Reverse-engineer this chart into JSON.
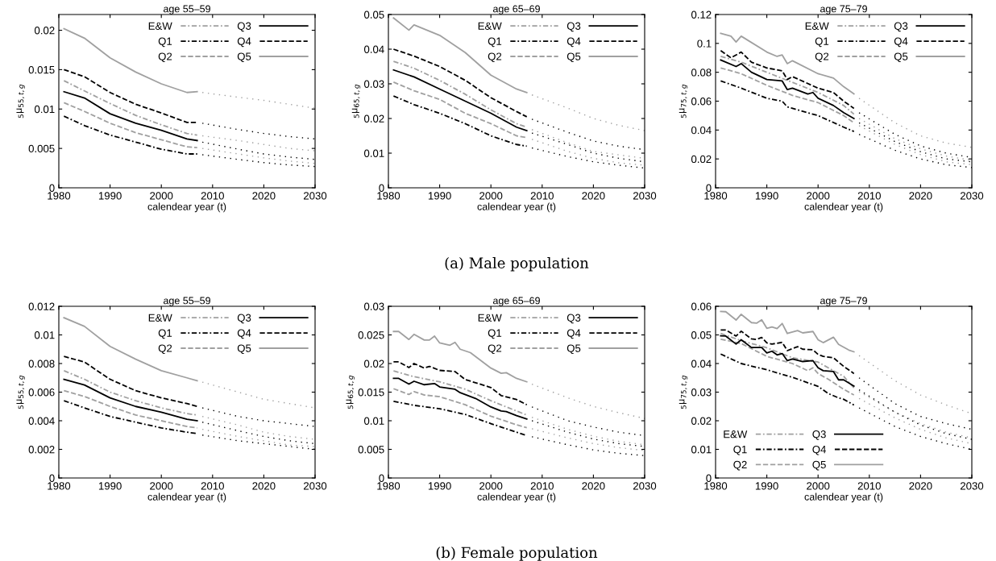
{
  "chart_data": [
    {
      "type": "line",
      "title": "age 55–59",
      "xlabel": "calendear year (t)",
      "ylabel": "$_{5}$μ$_{55,t,g}$",
      "xlim": [
        1980,
        2030
      ],
      "ylim": [
        0,
        0.022
      ],
      "xticks": [
        1980,
        1990,
        2000,
        2010,
        2020,
        2030
      ],
      "yticks": [
        0,
        0.005,
        0.01,
        0.015,
        0.02
      ],
      "legend": "top right",
      "series": [
        {
          "name": "E&W",
          "color": "#a0a0a0",
          "line_style": "dashdot",
          "x": [
            1981,
            1985,
            1990,
            1995,
            2000,
            2005,
            2007
          ],
          "values": [
            0.0136,
            0.0123,
            0.0107,
            0.0092,
            0.008,
            0.0069,
            0.0067
          ]
        },
        {
          "name": "Q1",
          "color": "#000000",
          "line_style": "dashdot",
          "x": [
            1981,
            1985,
            1990,
            1995,
            2000,
            2005,
            2007
          ],
          "values": [
            0.0091,
            0.0079,
            0.0067,
            0.0058,
            0.0049,
            0.0043,
            0.0043
          ]
        },
        {
          "name": "Q2",
          "color": "#a0a0a0",
          "line_style": "dashed",
          "x": [
            1981,
            1985,
            1990,
            1995,
            2000,
            2005,
            2007
          ],
          "values": [
            0.0108,
            0.0097,
            0.0082,
            0.007,
            0.0061,
            0.0052,
            0.0051
          ]
        },
        {
          "name": "Q3",
          "color": "#000000",
          "line_style": "solid",
          "x": [
            1981,
            1985,
            1990,
            1995,
            2000,
            2005,
            2007
          ],
          "values": [
            0.0122,
            0.0114,
            0.0094,
            0.0082,
            0.0073,
            0.0062,
            0.006
          ]
        },
        {
          "name": "Q4",
          "color": "#000000",
          "line_style": "dashed",
          "x": [
            1981,
            1985,
            1990,
            1995,
            2000,
            2005,
            2007
          ],
          "values": [
            0.015,
            0.0141,
            0.0121,
            0.0106,
            0.0095,
            0.0083,
            0.0083
          ]
        },
        {
          "name": "Q5",
          "color": "#a0a0a0",
          "line_style": "solid",
          "x": [
            1981,
            1985,
            1990,
            1995,
            2000,
            2005,
            2007
          ],
          "values": [
            0.0202,
            0.019,
            0.0165,
            0.0147,
            0.0132,
            0.0121,
            0.0122
          ]
        },
        {
          "color": "#a0a0a0",
          "line_style": "dotted",
          "x": [
            2008,
            2015,
            2020,
            2025,
            2030
          ],
          "values": [
            0.0066,
            0.006,
            0.0055,
            0.005,
            0.0047
          ]
        },
        {
          "color": "#000000",
          "line_style": "dotted",
          "x": [
            2008,
            2015,
            2020,
            2025,
            2030
          ],
          "values": [
            0.0042,
            0.0036,
            0.0032,
            0.0029,
            0.0027
          ]
        },
        {
          "color": "#a0a0a0",
          "line_style": "dotted",
          "x": [
            2008,
            2015,
            2020,
            2025,
            2030
          ],
          "values": [
            0.005,
            0.0043,
            0.0038,
            0.0034,
            0.0031
          ]
        },
        {
          "color": "#000000",
          "line_style": "dotted",
          "x": [
            2008,
            2015,
            2020,
            2025,
            2030
          ],
          "values": [
            0.0058,
            0.0049,
            0.0043,
            0.0039,
            0.0036
          ]
        },
        {
          "color": "#000000",
          "line_style": "dotted",
          "x": [
            2008,
            2015,
            2020,
            2025,
            2030
          ],
          "values": [
            0.0082,
            0.0074,
            0.0069,
            0.0065,
            0.0062
          ]
        },
        {
          "color": "#a0a0a0",
          "line_style": "dotted",
          "x": [
            2008,
            2015,
            2020,
            2025,
            2030
          ],
          "values": [
            0.0121,
            0.0115,
            0.0111,
            0.0106,
            0.0101
          ]
        }
      ]
    },
    {
      "type": "line",
      "title": "age 65–69",
      "xlabel": "calendear year (t)",
      "ylabel": "$_{5}$μ$_{65,t,g}$",
      "xlim": [
        1980,
        2030
      ],
      "ylim": [
        0,
        0.05
      ],
      "xticks": [
        1980,
        1990,
        2000,
        2010,
        2020,
        2030
      ],
      "yticks": [
        0,
        0.01,
        0.02,
        0.03,
        0.04,
        0.05
      ],
      "legend": "top right",
      "annotations": [
        "(a) Male population"
      ],
      "series": [
        {
          "name": "E&W",
          "color": "#a0a0a0",
          "line_style": "dashdot",
          "x": [
            1981,
            1985,
            1990,
            1995,
            2000,
            2005,
            2007
          ],
          "values": [
            0.0365,
            0.0345,
            0.031,
            0.027,
            0.0225,
            0.0185,
            0.0175
          ]
        },
        {
          "name": "Q1",
          "color": "#000000",
          "line_style": "dashdot",
          "x": [
            1981,
            1985,
            1990,
            1995,
            2000,
            2005,
            2007
          ],
          "values": [
            0.0265,
            0.024,
            0.0215,
            0.0185,
            0.015,
            0.0125,
            0.012
          ]
        },
        {
          "name": "Q2",
          "color": "#a0a0a0",
          "line_style": "dashed",
          "x": [
            1981,
            1985,
            1990,
            1995,
            2000,
            2005,
            2007
          ],
          "values": [
            0.0305,
            0.028,
            0.0255,
            0.0215,
            0.0185,
            0.015,
            0.0145
          ]
        },
        {
          "name": "Q3",
          "color": "#000000",
          "line_style": "solid",
          "x": [
            1981,
            1985,
            1990,
            1995,
            2000,
            2005,
            2007
          ],
          "values": [
            0.034,
            0.032,
            0.0285,
            0.025,
            0.0215,
            0.0175,
            0.0165
          ]
        },
        {
          "name": "Q4",
          "color": "#000000",
          "line_style": "dashed",
          "x": [
            1981,
            1985,
            1990,
            1995,
            2000,
            2005,
            2007
          ],
          "values": [
            0.04,
            0.038,
            0.035,
            0.031,
            0.026,
            0.022,
            0.0205
          ]
        },
        {
          "name": "Q5",
          "color": "#a0a0a0",
          "line_style": "solid",
          "x": [
            1981,
            1984,
            1985,
            1990,
            1995,
            2000,
            2005,
            2007
          ],
          "values": [
            0.049,
            0.0455,
            0.047,
            0.044,
            0.039,
            0.0325,
            0.0285,
            0.0275
          ]
        },
        {
          "color": "#a0a0a0",
          "line_style": "dotted",
          "x": [
            2008,
            2015,
            2020,
            2025,
            2030
          ],
          "values": [
            0.0168,
            0.013,
            0.0105,
            0.0095,
            0.0085
          ]
        },
        {
          "color": "#000000",
          "line_style": "dotted",
          "x": [
            2008,
            2015,
            2020,
            2025,
            2030
          ],
          "values": [
            0.0115,
            0.009,
            0.0075,
            0.0065,
            0.0057
          ]
        },
        {
          "color": "#a0a0a0",
          "line_style": "dotted",
          "x": [
            2008,
            2015,
            2020,
            2025,
            2030
          ],
          "values": [
            0.014,
            0.0105,
            0.0085,
            0.0072,
            0.0065
          ]
        },
        {
          "color": "#000000",
          "line_style": "dotted",
          "x": [
            2008,
            2015,
            2020,
            2025,
            2030
          ],
          "values": [
            0.0158,
            0.0125,
            0.01,
            0.0085,
            0.0075
          ]
        },
        {
          "color": "#000000",
          "line_style": "dotted",
          "x": [
            2008,
            2015,
            2020,
            2025,
            2030
          ],
          "values": [
            0.0198,
            0.016,
            0.0135,
            0.012,
            0.011
          ]
        },
        {
          "color": "#a0a0a0",
          "line_style": "dotted",
          "x": [
            2008,
            2015,
            2020,
            2025,
            2030
          ],
          "values": [
            0.0268,
            0.023,
            0.02,
            0.018,
            0.0165
          ]
        }
      ]
    },
    {
      "type": "line",
      "title": "age 75–79",
      "xlabel": "calendear year (t)",
      "ylabel": "$_{5}$μ$_{75,t,g}$",
      "xlim": [
        1980,
        2030
      ],
      "ylim": [
        0,
        0.12
      ],
      "xticks": [
        1980,
        1990,
        2000,
        2010,
        2020,
        2030
      ],
      "yticks": [
        0,
        0.02,
        0.04,
        0.06,
        0.08,
        0.1,
        0.12
      ],
      "legend": "top right",
      "series": [
        {
          "name": "E&W",
          "color": "#a0a0a0",
          "line_style": "dashdot",
          "x": [
            1981,
            1985,
            1990,
            1995,
            2000,
            2005,
            2007
          ],
          "values": [
            0.091,
            0.087,
            0.08,
            0.073,
            0.066,
            0.057,
            0.051
          ]
        },
        {
          "name": "Q1",
          "color": "#000000",
          "line_style": "dashdot",
          "x": [
            1981,
            1985,
            1990,
            1993,
            1994,
            1995,
            2000,
            2005,
            2007
          ],
          "values": [
            0.074,
            0.069,
            0.062,
            0.06,
            0.056,
            0.055,
            0.05,
            0.042,
            0.039
          ]
        },
        {
          "name": "Q2",
          "color": "#a0a0a0",
          "line_style": "dashed",
          "x": [
            1981,
            1985,
            1990,
            1995,
            2000,
            2005,
            2007
          ],
          "values": [
            0.083,
            0.079,
            0.071,
            0.064,
            0.059,
            0.05,
            0.045
          ]
        },
        {
          "name": "Q3",
          "color": "#000000",
          "line_style": "solid",
          "x": [
            1981,
            1984,
            1985,
            1987,
            1990,
            1993,
            1994,
            1995,
            1998,
            1999,
            2000,
            2003,
            2005,
            2007
          ],
          "values": [
            0.0885,
            0.084,
            0.086,
            0.08,
            0.075,
            0.074,
            0.068,
            0.069,
            0.065,
            0.066,
            0.062,
            0.057,
            0.052,
            0.048
          ]
        },
        {
          "name": "Q4",
          "color": "#000000",
          "line_style": "dashed",
          "x": [
            1981,
            1983,
            1985,
            1987,
            1990,
            1993,
            1994,
            1995,
            2000,
            2003,
            2005,
            2007
          ],
          "values": [
            0.095,
            0.09,
            0.094,
            0.087,
            0.083,
            0.081,
            0.075,
            0.077,
            0.069,
            0.066,
            0.06,
            0.055
          ]
        },
        {
          "name": "Q5",
          "color": "#a0a0a0",
          "line_style": "solid",
          "x": [
            1981,
            1983,
            1984,
            1985,
            1990,
            1992,
            1993,
            1994,
            1995,
            2000,
            2003,
            2005,
            2007
          ],
          "values": [
            0.107,
            0.105,
            0.101,
            0.105,
            0.094,
            0.091,
            0.092,
            0.086,
            0.088,
            0.079,
            0.076,
            0.07,
            0.065
          ]
        },
        {
          "color": "#a0a0a0",
          "line_style": "dotted",
          "x": [
            2008,
            2015,
            2020,
            2025,
            2030
          ],
          "values": [
            0.048,
            0.034,
            0.027,
            0.022,
            0.019
          ]
        },
        {
          "color": "#000000",
          "line_style": "dotted",
          "x": [
            2008,
            2015,
            2020,
            2025,
            2030
          ],
          "values": [
            0.037,
            0.026,
            0.02,
            0.016,
            0.014
          ]
        },
        {
          "color": "#a0a0a0",
          "line_style": "dotted",
          "x": [
            2008,
            2015,
            2020,
            2025,
            2030
          ],
          "values": [
            0.043,
            0.03,
            0.023,
            0.018,
            0.016
          ]
        },
        {
          "color": "#000000",
          "line_style": "dotted",
          "x": [
            2008,
            2015,
            2020,
            2025,
            2030
          ],
          "values": [
            0.045,
            0.032,
            0.025,
            0.02,
            0.018
          ]
        },
        {
          "color": "#000000",
          "line_style": "dotted",
          "x": [
            2008,
            2015,
            2020,
            2025,
            2030
          ],
          "values": [
            0.052,
            0.037,
            0.029,
            0.024,
            0.021
          ]
        },
        {
          "color": "#a0a0a0",
          "line_style": "dotted",
          "x": [
            2008,
            2015,
            2020,
            2025,
            2030
          ],
          "values": [
            0.062,
            0.045,
            0.036,
            0.031,
            0.028
          ]
        }
      ]
    },
    {
      "type": "line",
      "title": "age 55–59",
      "xlabel": "calendear year (t)",
      "ylabel": "$_{5}$μ$_{55,t,g}$",
      "xlim": [
        1980,
        2030
      ],
      "ylim": [
        0,
        0.012
      ],
      "xticks": [
        1980,
        1990,
        2000,
        2010,
        2020,
        2030
      ],
      "yticks": [
        0,
        0.002,
        0.004,
        0.006,
        0.008,
        0.01,
        0.012
      ],
      "legend": "top right",
      "series": [
        {
          "name": "E&W",
          "color": "#a0a0a0",
          "line_style": "dashdot",
          "x": [
            1981,
            1985,
            1990,
            1995,
            2000,
            2005,
            2007
          ],
          "values": [
            0.0075,
            0.0069,
            0.006,
            0.0054,
            0.0049,
            0.0045,
            0.0044
          ]
        },
        {
          "name": "Q1",
          "color": "#000000",
          "line_style": "dashdot",
          "x": [
            1981,
            1985,
            1990,
            1995,
            2000,
            2005,
            2007
          ],
          "values": [
            0.0054,
            0.0049,
            0.0043,
            0.0039,
            0.0035,
            0.0032,
            0.0031
          ]
        },
        {
          "name": "Q2",
          "color": "#a0a0a0",
          "line_style": "dashed",
          "x": [
            1981,
            1985,
            1990,
            1995,
            2000,
            2005,
            2007
          ],
          "values": [
            0.0061,
            0.0057,
            0.005,
            0.0044,
            0.004,
            0.0036,
            0.0035
          ]
        },
        {
          "name": "Q3",
          "color": "#000000",
          "line_style": "solid",
          "x": [
            1981,
            1985,
            1990,
            1995,
            2000,
            2005,
            2007
          ],
          "values": [
            0.0069,
            0.0065,
            0.0056,
            0.005,
            0.0046,
            0.0041,
            0.004
          ]
        },
        {
          "name": "Q4",
          "color": "#000000",
          "line_style": "dashed",
          "x": [
            1981,
            1985,
            1990,
            1995,
            2000,
            2005,
            2007
          ],
          "values": [
            0.0085,
            0.0081,
            0.0069,
            0.0061,
            0.0056,
            0.0052,
            0.005
          ]
        },
        {
          "name": "Q5",
          "color": "#a0a0a0",
          "line_style": "solid",
          "x": [
            1981,
            1985,
            1990,
            1995,
            2000,
            2005,
            2007
          ],
          "values": [
            0.0112,
            0.0106,
            0.0092,
            0.0083,
            0.0075,
            0.007,
            0.0068
          ]
        },
        {
          "color": "#a0a0a0",
          "line_style": "dotted",
          "x": [
            2008,
            2015,
            2020,
            2025,
            2030
          ],
          "values": [
            0.0043,
            0.0037,
            0.0032,
            0.0029,
            0.0027
          ]
        },
        {
          "color": "#000000",
          "line_style": "dotted",
          "x": [
            2008,
            2015,
            2020,
            2025,
            2030
          ],
          "values": [
            0.003,
            0.0026,
            0.0024,
            0.0022,
            0.002
          ]
        },
        {
          "color": "#a0a0a0",
          "line_style": "dotted",
          "x": [
            2008,
            2015,
            2020,
            2025,
            2030
          ],
          "values": [
            0.0034,
            0.0029,
            0.0026,
            0.0023,
            0.0022
          ]
        },
        {
          "color": "#000000",
          "line_style": "dotted",
          "x": [
            2008,
            2015,
            2020,
            2025,
            2030
          ],
          "values": [
            0.0039,
            0.0033,
            0.0029,
            0.0026,
            0.0024
          ]
        },
        {
          "color": "#000000",
          "line_style": "dotted",
          "x": [
            2008,
            2015,
            2020,
            2025,
            2030
          ],
          "values": [
            0.0049,
            0.0043,
            0.004,
            0.0038,
            0.0036
          ]
        },
        {
          "color": "#a0a0a0",
          "line_style": "dotted",
          "x": [
            2008,
            2015,
            2020,
            2025,
            2030
          ],
          "values": [
            0.0067,
            0.006,
            0.0055,
            0.0052,
            0.0049
          ]
        }
      ]
    },
    {
      "type": "line",
      "title": "age 65–69",
      "xlabel": "calendear year (t)",
      "ylabel": "$_{5}$μ$_{65,t,g}$",
      "xlim": [
        1980,
        2030
      ],
      "ylim": [
        0,
        0.03
      ],
      "xticks": [
        1980,
        1990,
        2000,
        2010,
        2020,
        2030
      ],
      "yticks": [
        0,
        0.005,
        0.01,
        0.015,
        0.02,
        0.025,
        0.03
      ],
      "legend": "top right",
      "annotations": [
        "(b) Female population"
      ],
      "series": [
        {
          "name": "E&W",
          "color": "#a0a0a0",
          "line_style": "dashdot",
          "x": [
            1981,
            1985,
            1990,
            1995,
            2000,
            2005,
            2007
          ],
          "values": [
            0.0187,
            0.0177,
            0.0168,
            0.0155,
            0.0135,
            0.0117,
            0.011
          ]
        },
        {
          "name": "Q1",
          "color": "#000000",
          "line_style": "dashdot",
          "x": [
            1981,
            1985,
            1990,
            1995,
            2000,
            2005,
            2007
          ],
          "values": [
            0.0134,
            0.0127,
            0.0121,
            0.0111,
            0.0095,
            0.008,
            0.0074
          ]
        },
        {
          "name": "Q2",
          "color": "#a0a0a0",
          "line_style": "dashed",
          "x": [
            1981,
            1984,
            1985,
            1987,
            1990,
            1995,
            2000,
            2005,
            2007
          ],
          "values": [
            0.0156,
            0.0146,
            0.0151,
            0.0145,
            0.0142,
            0.0128,
            0.0108,
            0.0093,
            0.0088
          ]
        },
        {
          "name": "Q3",
          "color": "#000000",
          "line_style": "solid",
          "x": [
            1981,
            1982,
            1984,
            1985,
            1987,
            1989,
            1990,
            1993,
            1994,
            1997,
            2000,
            2002,
            2003,
            2005,
            2007
          ],
          "values": [
            0.0174,
            0.0174,
            0.0164,
            0.0169,
            0.0163,
            0.0165,
            0.0159,
            0.0155,
            0.0149,
            0.0139,
            0.0124,
            0.0117,
            0.0116,
            0.0109,
            0.0103
          ]
        },
        {
          "name": "Q4",
          "color": "#000000",
          "line_style": "dashed",
          "x": [
            1981,
            1982,
            1984,
            1985,
            1987,
            1988,
            1990,
            1993,
            1995,
            2000,
            2002,
            2005,
            2007
          ],
          "values": [
            0.0203,
            0.0203,
            0.0193,
            0.02,
            0.0192,
            0.0195,
            0.0188,
            0.0186,
            0.0172,
            0.0158,
            0.0144,
            0.0137,
            0.0128
          ]
        },
        {
          "name": "Q5",
          "color": "#a0a0a0",
          "line_style": "solid",
          "x": [
            1981,
            1982,
            1984,
            1985,
            1987,
            1988,
            1989,
            1990,
            1992,
            1993,
            1994,
            1996,
            2000,
            2002,
            2003,
            2005,
            2007
          ],
          "values": [
            0.0256,
            0.0256,
            0.0242,
            0.0251,
            0.0241,
            0.0241,
            0.0248,
            0.0236,
            0.0232,
            0.0237,
            0.0225,
            0.0219,
            0.0192,
            0.0183,
            0.0184,
            0.0174,
            0.0168
          ]
        },
        {
          "color": "#a0a0a0",
          "line_style": "dotted",
          "x": [
            2008,
            2015,
            2020,
            2025,
            2030
          ],
          "values": [
            0.0106,
            0.0085,
            0.0073,
            0.0064,
            0.0058
          ]
        },
        {
          "color": "#000000",
          "line_style": "dotted",
          "x": [
            2008,
            2015,
            2020,
            2025,
            2030
          ],
          "values": [
            0.0072,
            0.0058,
            0.0049,
            0.0043,
            0.0039
          ]
        },
        {
          "color": "#a0a0a0",
          "line_style": "dotted",
          "x": [
            2008,
            2015,
            2020,
            2025,
            2030
          ],
          "values": [
            0.0086,
            0.007,
            0.006,
            0.0053,
            0.0048
          ]
        },
        {
          "color": "#000000",
          "line_style": "dotted",
          "x": [
            2008,
            2015,
            2020,
            2025,
            2030
          ],
          "values": [
            0.01,
            0.008,
            0.0068,
            0.006,
            0.0055
          ]
        },
        {
          "color": "#000000",
          "line_style": "dotted",
          "x": [
            2008,
            2015,
            2020,
            2025,
            2030
          ],
          "values": [
            0.0124,
            0.01,
            0.0089,
            0.008,
            0.0074
          ]
        },
        {
          "color": "#a0a0a0",
          "line_style": "dotted",
          "x": [
            2008,
            2015,
            2020,
            2025,
            2030
          ],
          "values": [
            0.0164,
            0.014,
            0.0125,
            0.0114,
            0.0104
          ]
        }
      ]
    },
    {
      "type": "line",
      "title": "age 75–79",
      "xlabel": "calendear year (t)",
      "ylabel": "$_{5}$μ$_{75,t,g}$",
      "xlim": [
        1980,
        2030
      ],
      "ylim": [
        0,
        0.06
      ],
      "xticks": [
        1980,
        1990,
        2000,
        2010,
        2020,
        2030
      ],
      "yticks": [
        0,
        0.01,
        0.02,
        0.03,
        0.04,
        0.05,
        0.06
      ],
      "legend": "bottom left",
      "series": [
        {
          "name": "E&W",
          "color": "#a0a0a0",
          "line_style": "dashdot",
          "x": [
            1981,
            1985,
            1990,
            1995,
            2000,
            2005,
            2007
          ],
          "values": [
            0.0505,
            0.048,
            0.0455,
            0.042,
            0.0405,
            0.0355,
            0.0315
          ]
        },
        {
          "name": "Q1",
          "color": "#000000",
          "line_style": "dashdot",
          "x": [
            1981,
            1985,
            1990,
            1995,
            2000,
            2002,
            2004,
            2005,
            2007
          ],
          "values": [
            0.0433,
            0.04,
            0.0378,
            0.0352,
            0.032,
            0.0295,
            0.028,
            0.0275,
            0.0255
          ]
        },
        {
          "name": "Q2",
          "color": "#a0a0a0",
          "line_style": "dashed",
          "x": [
            1981,
            1985,
            1990,
            1995,
            1998,
            1999,
            2000,
            2002,
            2005,
            2007
          ],
          "values": [
            0.0485,
            0.047,
            0.0425,
            0.04,
            0.0375,
            0.0385,
            0.0365,
            0.0345,
            0.031,
            0.029
          ]
        },
        {
          "name": "Q3",
          "color": "#000000",
          "line_style": "solid",
          "x": [
            1981,
            1982,
            1984,
            1985,
            1987,
            1989,
            1990,
            1991,
            1992,
            1993,
            1994,
            1995,
            1997,
            1999,
            2000,
            2001,
            2003,
            2004,
            2005,
            2007
          ],
          "values": [
            0.0497,
            0.0496,
            0.0468,
            0.0483,
            0.0456,
            0.0456,
            0.0437,
            0.0443,
            0.043,
            0.0435,
            0.041,
            0.0416,
            0.0407,
            0.041,
            0.0385,
            0.0375,
            0.0372,
            0.0343,
            0.0343,
            0.0321
          ]
        },
        {
          "name": "Q4",
          "color": "#000000",
          "line_style": "dashed",
          "x": [
            1981,
            1982,
            1984,
            1985,
            1987,
            1988,
            1989,
            1990,
            1991,
            1993,
            1994,
            1996,
            1997,
            1999,
            2000,
            2001,
            2003,
            2005,
            2007
          ],
          "values": [
            0.0517,
            0.0517,
            0.0496,
            0.0513,
            0.0486,
            0.0484,
            0.0491,
            0.0472,
            0.0468,
            0.0474,
            0.0445,
            0.0459,
            0.045,
            0.0448,
            0.0432,
            0.0425,
            0.042,
            0.039,
            0.0365
          ]
        },
        {
          "name": "Q5",
          "color": "#a0a0a0",
          "line_style": "solid",
          "x": [
            1981,
            1982,
            1984,
            1985,
            1987,
            1988,
            1989,
            1990,
            1991,
            1992,
            1993,
            1994,
            1996,
            1997,
            1999,
            2000,
            2001,
            2003,
            2004,
            2006,
            2007
          ],
          "values": [
            0.0582,
            0.0581,
            0.0552,
            0.0572,
            0.0543,
            0.0541,
            0.0553,
            0.0523,
            0.0528,
            0.0522,
            0.054,
            0.0505,
            0.0515,
            0.0507,
            0.0512,
            0.0483,
            0.0473,
            0.0492,
            0.0467,
            0.0447,
            0.0441
          ]
        },
        {
          "color": "#a0a0a0",
          "line_style": "dotted",
          "x": [
            2008,
            2015,
            2020,
            2025,
            2030
          ],
          "values": [
            0.0302,
            0.023,
            0.019,
            0.016,
            0.014
          ]
        },
        {
          "color": "#000000",
          "line_style": "dotted",
          "x": [
            2008,
            2015,
            2020,
            2025,
            2030
          ],
          "values": [
            0.0245,
            0.018,
            0.0145,
            0.012,
            0.01
          ]
        },
        {
          "color": "#a0a0a0",
          "line_style": "dotted",
          "x": [
            2008,
            2015,
            2020,
            2025,
            2030
          ],
          "values": [
            0.0278,
            0.021,
            0.017,
            0.014,
            0.012
          ]
        },
        {
          "color": "#000000",
          "line_style": "dotted",
          "x": [
            2008,
            2015,
            2020,
            2025,
            2030
          ],
          "values": [
            0.0308,
            0.023,
            0.0185,
            0.0155,
            0.0135
          ]
        },
        {
          "color": "#000000",
          "line_style": "dotted",
          "x": [
            2008,
            2015,
            2020,
            2025,
            2030
          ],
          "values": [
            0.035,
            0.026,
            0.0215,
            0.019,
            0.017
          ]
        },
        {
          "color": "#a0a0a0",
          "line_style": "dotted",
          "x": [
            2008,
            2015,
            2020,
            2025,
            2030
          ],
          "values": [
            0.0428,
            0.034,
            0.029,
            0.0255,
            0.0225
          ]
        }
      ]
    }
  ]
}
